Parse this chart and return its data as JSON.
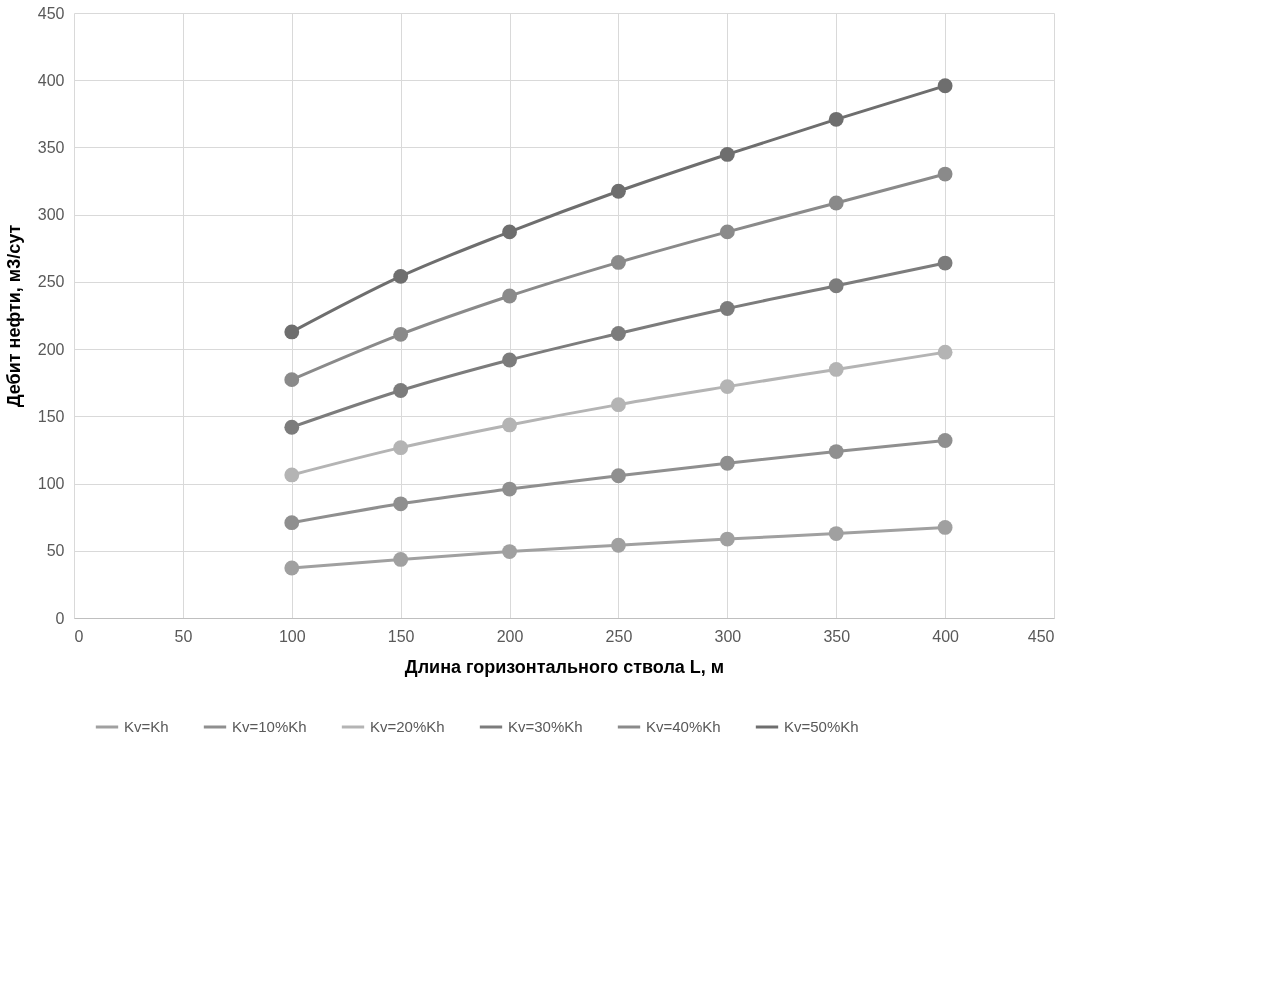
{
  "chart_data": {
    "type": "line",
    "xlabel": "Длина горизонтального  ствола L, м",
    "ylabel": "Дебит нефти, м3/сут",
    "x": [
      100,
      150,
      200,
      250,
      300,
      350,
      400
    ],
    "series": [
      {
        "name": "Kv=Kh",
        "color": "#a0a0a0",
        "values": [
          37.2,
          43.6,
          49.4,
          54.1,
          58.7,
          62.8,
          67.4
        ]
      },
      {
        "name": "Kv=10%Kh",
        "color": "#8f8f8f",
        "values": [
          70.9,
          84.9,
          95.9,
          105.8,
          115.1,
          123.8,
          132.0
        ]
      },
      {
        "name": "Kv=20%Kh",
        "color": "#b4b4b4",
        "values": [
          106.4,
          126.7,
          143.6,
          158.7,
          172.1,
          184.9,
          197.7
        ]
      },
      {
        "name": "Kv=30%Kh",
        "color": "#7c7c7c",
        "values": [
          141.9,
          169.2,
          191.9,
          211.6,
          230.2,
          247.1,
          264.0
        ]
      },
      {
        "name": "Kv=40%Kh",
        "color": "#8a8a8a",
        "values": [
          177.3,
          211.0,
          239.5,
          264.5,
          287.2,
          308.7,
          330.2
        ]
      },
      {
        "name": "Kv=50%Kh",
        "color": "#6e6e6e",
        "values": [
          212.8,
          254.1,
          287.2,
          317.4,
          344.8,
          370.9,
          395.9
        ]
      }
    ],
    "xlim": [
      0,
      450
    ],
    "xticks": [
      0,
      50,
      100,
      150,
      200,
      250,
      300,
      350,
      400,
      450
    ],
    "ylim": [
      0,
      450
    ],
    "yticks": [
      0,
      50,
      100,
      150,
      200,
      250,
      300,
      350,
      400,
      450
    ],
    "grid": true,
    "legend": "bottom",
    "marker": "circle",
    "line_style": "solid"
  }
}
